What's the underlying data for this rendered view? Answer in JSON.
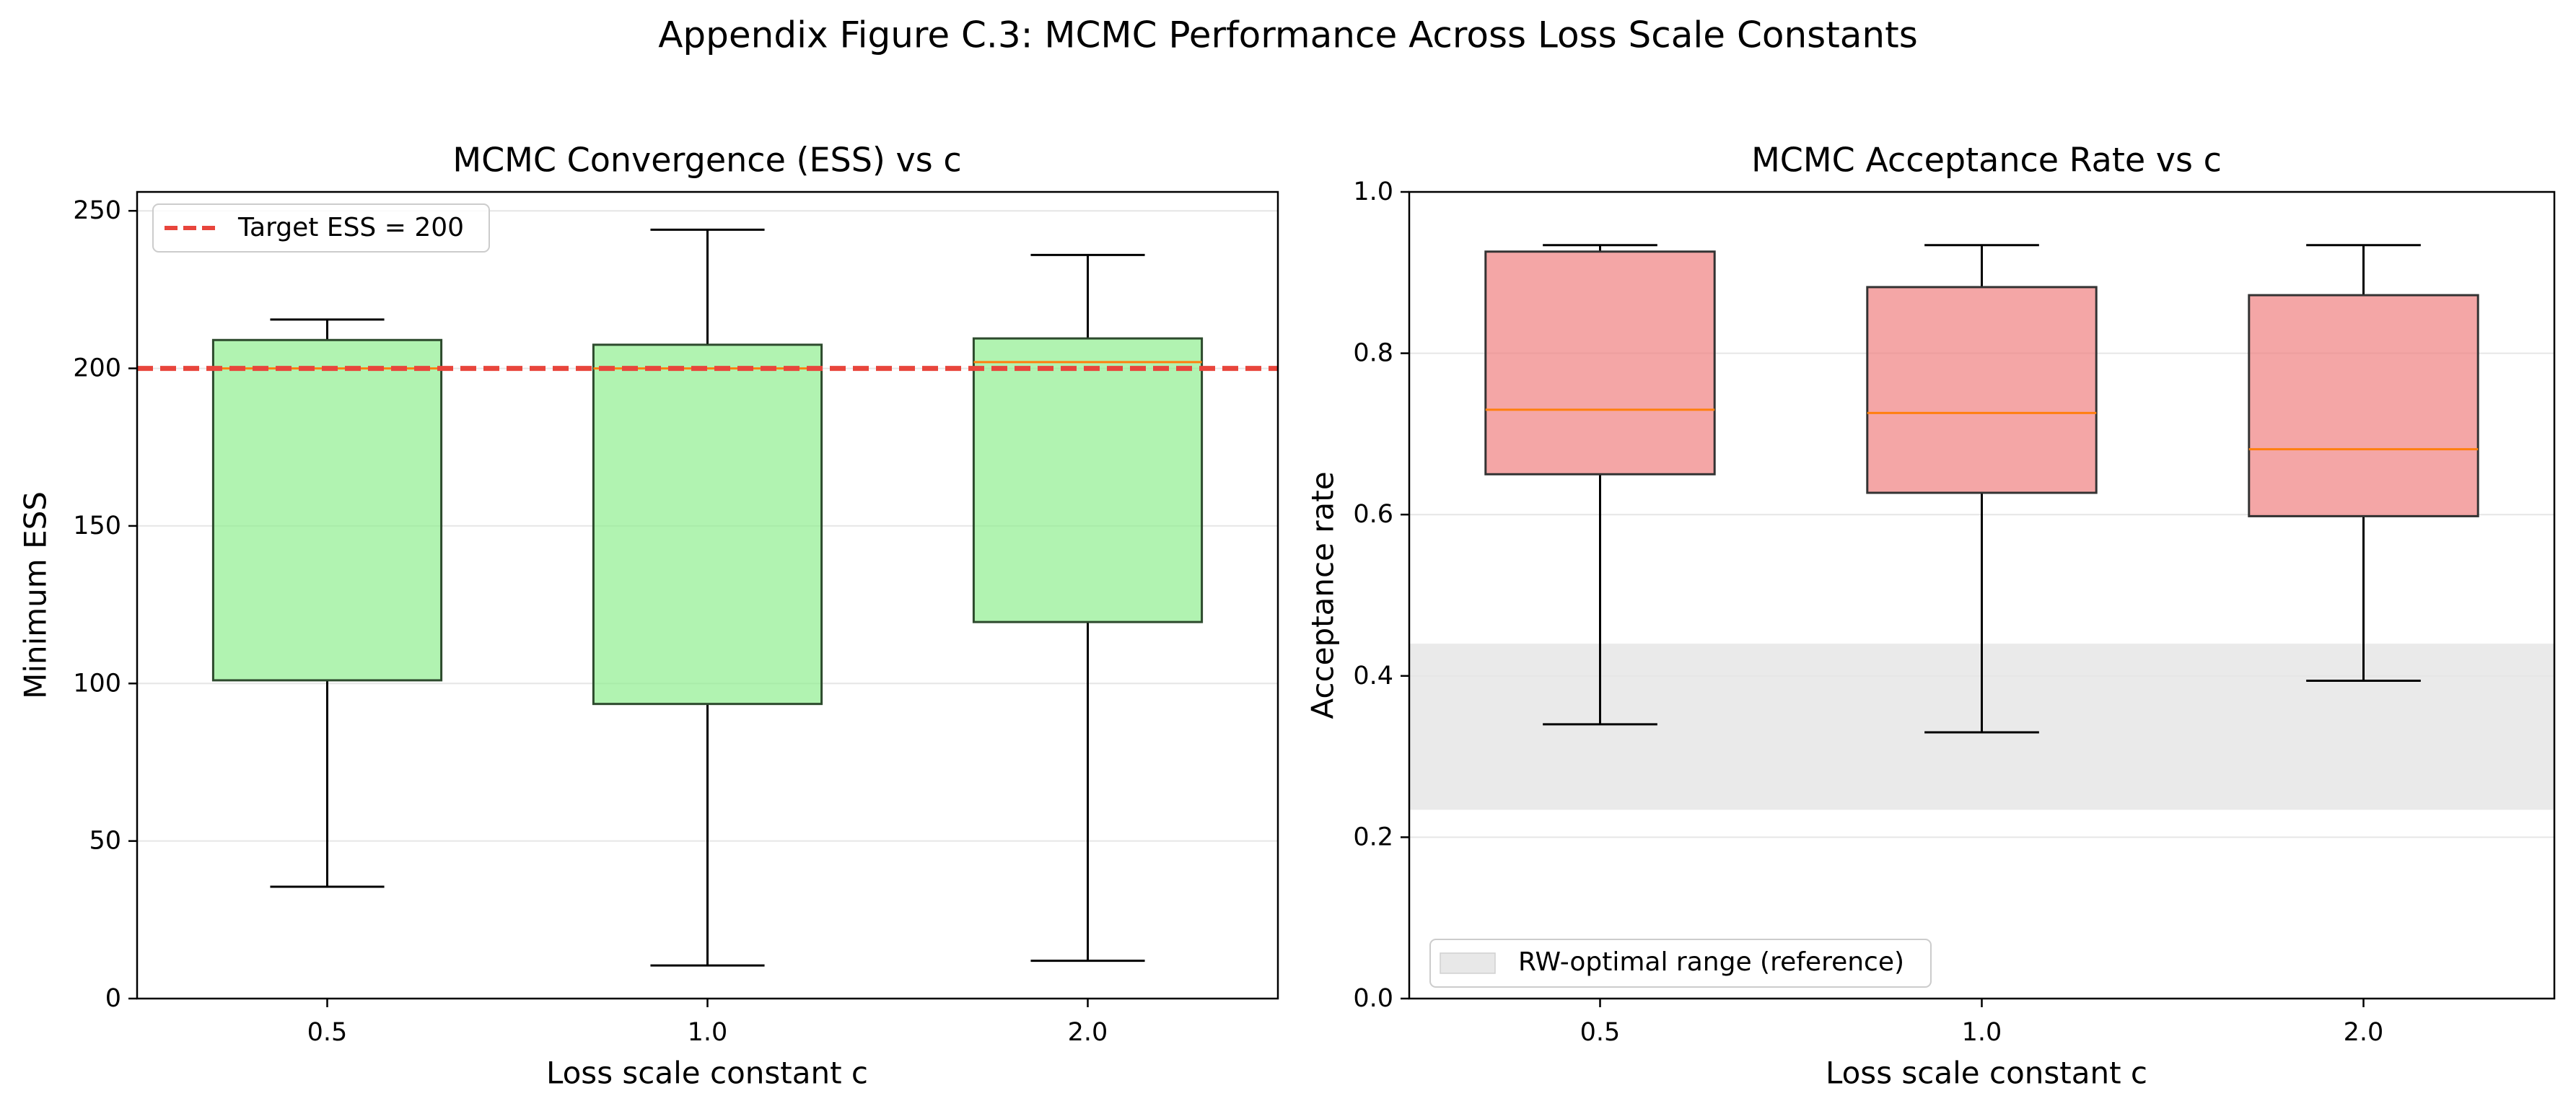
{
  "figure_title": "Appendix Figure C.3: MCMC Performance Across Loss Scale Constants",
  "chart_data": [
    {
      "type": "box",
      "title": "MCMC Convergence (ESS) vs c",
      "xlabel": "Loss scale constant c",
      "ylabel": "Minimum ESS",
      "categories": [
        "0.5",
        "1.0",
        "2.0"
      ],
      "ylim": [
        0,
        256
      ],
      "yticks": [
        0,
        50,
        100,
        150,
        200,
        250
      ],
      "ytick_labels": [
        "0",
        "50",
        "100",
        "150",
        "200",
        "250"
      ],
      "grid": "y",
      "box_color": "#90ee90",
      "box_edge": "#2d4a2d",
      "median_color": "#ff7f0e",
      "boxes": [
        {
          "whislo": 35.5,
          "q1": 101,
          "med": 200,
          "q3": 209,
          "whishi": 215.5
        },
        {
          "whislo": 10.5,
          "q1": 93.5,
          "med": 200,
          "q3": 207.5,
          "whishi": 244
        },
        {
          "whislo": 12,
          "q1": 119.5,
          "med": 202,
          "q3": 209.5,
          "whishi": 236
        }
      ],
      "reference_line": {
        "y": 200,
        "label": "Target ESS = 200",
        "color": "#e8453c"
      },
      "legend": "top-left"
    },
    {
      "type": "box",
      "title": "MCMC Acceptance Rate vs c",
      "xlabel": "Loss scale constant c",
      "ylabel": "Acceptance rate",
      "categories": [
        "0.5",
        "1.0",
        "2.0"
      ],
      "ylim": [
        0,
        1
      ],
      "yticks": [
        0,
        0.2,
        0.4,
        0.6,
        0.8,
        1.0
      ],
      "ytick_labels": [
        "0.0",
        "0.2",
        "0.4",
        "0.6",
        "0.8",
        "1.0"
      ],
      "grid": "y",
      "box_color": "#f08080",
      "box_edge": "#333333",
      "median_color": "#ff7f0e",
      "boxes": [
        {
          "whislo": 0.34,
          "q1": 0.65,
          "med": 0.73,
          "q3": 0.926,
          "whishi": 0.934
        },
        {
          "whislo": 0.33,
          "q1": 0.627,
          "med": 0.726,
          "q3": 0.882,
          "whishi": 0.934
        },
        {
          "whislo": 0.394,
          "q1": 0.598,
          "med": 0.681,
          "q3": 0.872,
          "whishi": 0.934
        }
      ],
      "reference_band": {
        "y0": 0.234,
        "y1": 0.44,
        "label": "RW-optimal range (reference)",
        "color": "#e8e8e8"
      },
      "legend": "bottom-left"
    }
  ]
}
